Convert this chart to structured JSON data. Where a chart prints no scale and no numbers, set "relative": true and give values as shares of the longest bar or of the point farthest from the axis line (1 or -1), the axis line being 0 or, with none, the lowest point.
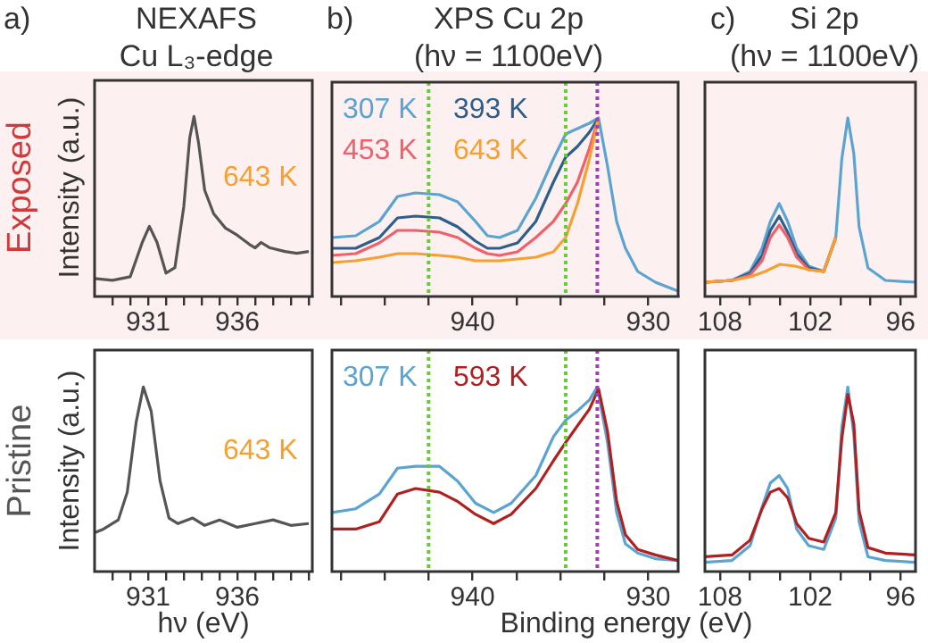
{
  "chart_data": [
    {
      "type": "line",
      "title": "NEXAFS",
      "subtitle": "Cu L₃-edge",
      "ylabel": "Intensity (a.u.)",
      "annotations": [
        "a)",
        "Exposed"
      ],
      "relative": true,
      "marker": "none",
      "legend": false,
      "xlim": [
        928,
        940.2
      ],
      "xticks": [
        {
          "value": 929,
          "label": null
        },
        {
          "value": 930,
          "label": null
        },
        931,
        {
          "value": 932,
          "label": null
        },
        {
          "value": 933,
          "label": null
        },
        {
          "value": 934,
          "label": null
        },
        {
          "value": 935,
          "label": null
        },
        936,
        {
          "value": 937,
          "label": null
        },
        {
          "value": 938,
          "label": null
        },
        {
          "value": 939,
          "label": null
        },
        {
          "value": 940,
          "label": null
        }
      ],
      "series": [
        {
          "name": "643 K",
          "color": "#555555",
          "x": [
            928,
            929,
            930,
            930.67,
            931.07,
            931.5,
            932,
            932.5,
            933,
            933.33,
            933.57,
            933.83,
            934.17,
            934.67,
            935.33,
            936,
            936.67,
            937,
            937.33,
            937.83,
            938.67,
            939.33,
            940
          ],
          "values": [
            0.1,
            0.09,
            0.11,
            0.3,
            0.39,
            0.3,
            0.13,
            0.16,
            0.5,
            0.88,
            1,
            0.85,
            0.59,
            0.46,
            0.38,
            0.34,
            0.29,
            0.27,
            0.3,
            0.27,
            0.25,
            0.24,
            0.25
          ]
        }
      ]
    },
    {
      "type": "line",
      "title": "XPS Cu 2p",
      "subtitle": "(hν = 1100eV)",
      "annotations": [
        "b)"
      ],
      "relative": true,
      "marker": "none",
      "legend": "top left",
      "xlim": [
        948,
        928.3
      ],
      "xticks": [
        {
          "value": 947.5,
          "label": null
        },
        {
          "value": 945,
          "label": null
        },
        {
          "value": 942.5,
          "label": null
        },
        940,
        {
          "value": 937.5,
          "label": null
        },
        {
          "value": 935,
          "label": null
        },
        {
          "value": 932.5,
          "label": null
        },
        930
      ],
      "ref_lines": [
        {
          "axis": "x",
          "value": 942.5,
          "color": "#66cc33",
          "line_style": "dotted"
        },
        {
          "axis": "x",
          "value": 934.7,
          "color": "#66cc33",
          "line_style": "dotted"
        },
        {
          "axis": "x",
          "value": 932.9,
          "color": "#a040b0",
          "line_style": "dotted"
        }
      ],
      "series": [
        {
          "name": "643 K",
          "color": "#f5a030",
          "x": [
            948,
            946.65,
            945.3,
            944.27,
            943.24,
            941.88,
            940.85,
            939.83,
            938.46,
            936.4,
            935.4,
            934.7,
            934.03,
            933.35,
            932.83
          ],
          "values": [
            0.19,
            0.2,
            0.22,
            0.24,
            0.24,
            0.23,
            0.22,
            0.2,
            0.2,
            0.22,
            0.25,
            0.33,
            0.52,
            0.77,
            1
          ]
        },
        {
          "name": "453 K",
          "color": "#f0606a",
          "x": [
            948,
            946.65,
            945.3,
            944.27,
            943.24,
            941.88,
            940.85,
            939.83,
            939.15,
            938.46,
            937.44,
            936.4,
            935.4,
            934.7,
            934.03,
            933.35,
            932.83
          ],
          "values": [
            0.23,
            0.24,
            0.3,
            0.37,
            0.37,
            0.36,
            0.33,
            0.27,
            0.24,
            0.23,
            0.25,
            0.33,
            0.42,
            0.52,
            0.64,
            0.83,
            1
          ]
        },
        {
          "name": "393 K",
          "color": "#2e5e8c",
          "x": [
            948,
            946.65,
            945.3,
            944.27,
            943.24,
            941.88,
            940.85,
            939.83,
            939.15,
            938.46,
            937.44,
            936.4,
            935.4,
            934.7,
            934.03,
            933.35,
            932.83
          ],
          "values": [
            0.27,
            0.27,
            0.33,
            0.44,
            0.45,
            0.44,
            0.39,
            0.31,
            0.27,
            0.27,
            0.3,
            0.42,
            0.64,
            0.78,
            0.84,
            0.92,
            1
          ]
        },
        {
          "name": "307 K",
          "color": "#5ba3d0",
          "x": [
            948,
            946.65,
            945.3,
            944.27,
            943.24,
            941.88,
            940.85,
            939.83,
            939.15,
            938.46,
            937.44,
            936.4,
            935.4,
            934.7,
            934.03,
            933.35,
            932.83,
            932.32,
            931.8,
            931.3,
            930.6,
            929.6,
            928.3
          ],
          "values": [
            0.33,
            0.34,
            0.42,
            0.56,
            0.58,
            0.57,
            0.53,
            0.42,
            0.34,
            0.33,
            0.37,
            0.55,
            0.77,
            0.91,
            0.94,
            0.97,
            1,
            0.73,
            0.42,
            0.27,
            0.14,
            0.08,
            0.03
          ]
        }
      ]
    },
    {
      "type": "line",
      "title": "Si 2p",
      "subtitle": "(hν = 1100eV)",
      "annotations": [
        "c)"
      ],
      "relative": true,
      "marker": "none",
      "legend": false,
      "xlim": [
        109,
        95
      ],
      "xticks": [
        108,
        {
          "value": 106,
          "label": null
        },
        {
          "value": 104,
          "label": null
        },
        102,
        {
          "value": 100,
          "label": null
        },
        {
          "value": 98,
          "label": null
        },
        96
      ],
      "series": [
        {
          "color": "#f5a030",
          "x": [
            109,
            107.2,
            106,
            105,
            104,
            103,
            102.1,
            101.1,
            100.3
          ],
          "values": [
            0.08,
            0.09,
            0.11,
            0.14,
            0.18,
            0.17,
            0.15,
            0.14,
            0.33
          ]
        },
        {
          "color": "#f0606a",
          "x": [
            109,
            107.2,
            106,
            105.2,
            104.65,
            104.06,
            103.5,
            102.9,
            102.1,
            101.1,
            100.3
          ],
          "values": [
            0.08,
            0.09,
            0.12,
            0.2,
            0.33,
            0.4,
            0.33,
            0.22,
            0.15,
            0.14,
            0.33
          ]
        },
        {
          "color": "#2e5e8c",
          "x": [
            109,
            107.2,
            106,
            105.2,
            104.65,
            104.06,
            103.5,
            102.9,
            102.1,
            101.1,
            100.3
          ],
          "values": [
            0.08,
            0.09,
            0.13,
            0.23,
            0.37,
            0.45,
            0.36,
            0.24,
            0.16,
            0.14,
            0.33
          ]
        },
        {
          "color": "#5ba3d0",
          "x": [
            109,
            107.2,
            106,
            105.2,
            104.65,
            104.06,
            103.5,
            102.9,
            102.1,
            101.1,
            100.3,
            99.9,
            99.5,
            99.1,
            98.75,
            98.16,
            97,
            95
          ],
          "values": [
            0.08,
            0.09,
            0.14,
            0.27,
            0.42,
            0.52,
            0.42,
            0.27,
            0.17,
            0.14,
            0.33,
            0.77,
            1,
            0.8,
            0.39,
            0.16,
            0.09,
            0.08
          ]
        }
      ]
    },
    {
      "type": "line",
      "xlabel": "hν (eV)",
      "ylabel": "Intensity (a.u.)",
      "annotations": [
        "Pristine"
      ],
      "relative": true,
      "marker": "none",
      "legend": false,
      "xlim": [
        928,
        940.2
      ],
      "xticks": [
        {
          "value": 929,
          "label": null
        },
        {
          "value": 930,
          "label": null
        },
        931,
        {
          "value": 932,
          "label": null
        },
        {
          "value": 933,
          "label": null
        },
        {
          "value": 934,
          "label": null
        },
        {
          "value": 935,
          "label": null
        },
        936,
        {
          "value": 937,
          "label": null
        },
        {
          "value": 938,
          "label": null
        },
        {
          "value": 939,
          "label": null
        },
        {
          "value": 940,
          "label": null
        }
      ],
      "series": [
        {
          "name": "643 K",
          "color": "#555555",
          "x": [
            928,
            928.5,
            929.33,
            929.83,
            930.33,
            930.73,
            931.17,
            931.67,
            932.17,
            932.67,
            933.5,
            934.17,
            935,
            936,
            937,
            938,
            939,
            940
          ],
          "values": [
            0.21,
            0.23,
            0.28,
            0.43,
            0.81,
            1,
            0.87,
            0.49,
            0.29,
            0.26,
            0.29,
            0.25,
            0.28,
            0.24,
            0.26,
            0.28,
            0.25,
            0.26
          ]
        }
      ]
    },
    {
      "type": "line",
      "xlabel": "Binding energy (eV)",
      "relative": true,
      "marker": "none",
      "legend": "top left",
      "xlim": [
        948,
        928.3
      ],
      "xticks": [
        {
          "value": 947.5,
          "label": null
        },
        {
          "value": 945,
          "label": null
        },
        {
          "value": 942.5,
          "label": null
        },
        940,
        {
          "value": 937.5,
          "label": null
        },
        {
          "value": 935,
          "label": null
        },
        {
          "value": 932.5,
          "label": null
        },
        930
      ],
      "ref_lines": [
        {
          "axis": "x",
          "value": 942.5,
          "color": "#66cc33",
          "line_style": "dotted"
        },
        {
          "axis": "x",
          "value": 934.7,
          "color": "#66cc33",
          "line_style": "dotted"
        },
        {
          "axis": "x",
          "value": 932.9,
          "color": "#a040b0",
          "line_style": "dotted"
        }
      ],
      "series": [
        {
          "name": "593 K",
          "color": "#b02020",
          "x": [
            948,
            946.65,
            945.3,
            944.27,
            943.24,
            941.88,
            940.85,
            939.83,
            938.8,
            937.8,
            936.4,
            935.4,
            934.7,
            934.03,
            933.35,
            932.83,
            932.32,
            931.8,
            931.3,
            930.6,
            929.6,
            928.3
          ],
          "values": [
            0.23,
            0.23,
            0.27,
            0.42,
            0.45,
            0.43,
            0.38,
            0.31,
            0.26,
            0.31,
            0.45,
            0.6,
            0.7,
            0.79,
            0.88,
            0.99,
            0.76,
            0.38,
            0.2,
            0.12,
            0.09,
            0.06
          ]
        },
        {
          "name": "307 K",
          "color": "#5ba3d0",
          "x": [
            948,
            946.65,
            945.3,
            944.27,
            943.24,
            941.88,
            940.85,
            939.83,
            938.8,
            937.8,
            936.4,
            935.4,
            934.7,
            934.03,
            933.35,
            932.9,
            932.32,
            931.8,
            931.3,
            930.6,
            929.6,
            928.3
          ],
          "values": [
            0.32,
            0.34,
            0.42,
            0.56,
            0.57,
            0.57,
            0.49,
            0.37,
            0.32,
            0.37,
            0.52,
            0.73,
            0.82,
            0.87,
            0.93,
            1,
            0.7,
            0.32,
            0.15,
            0.1,
            0.07,
            0.06
          ]
        }
      ]
    },
    {
      "type": "line",
      "relative": true,
      "marker": "none",
      "legend": false,
      "xlim": [
        109,
        95
      ],
      "xticks": [
        108,
        {
          "value": 106,
          "label": null
        },
        {
          "value": 104,
          "label": null
        },
        102,
        {
          "value": 100,
          "label": null
        },
        {
          "value": 98,
          "label": null
        },
        96
      ],
      "series": [
        {
          "color": "#b02020",
          "x": [
            109,
            107.2,
            106,
            105.2,
            104.65,
            104.06,
            103.5,
            102.9,
            102.1,
            101.1,
            100.3,
            99.9,
            99.5,
            99.1,
            98.75,
            98.16,
            97,
            95
          ],
          "values": [
            0.08,
            0.09,
            0.17,
            0.34,
            0.43,
            0.45,
            0.4,
            0.26,
            0.18,
            0.16,
            0.32,
            0.72,
            0.96,
            0.8,
            0.33,
            0.13,
            0.1,
            0.09
          ]
        },
        {
          "color": "#5ba3d0",
          "x": [
            109,
            107.2,
            106,
            105.2,
            104.65,
            104.06,
            103.5,
            102.9,
            102.1,
            101.1,
            100.3,
            99.9,
            99.5,
            99.1,
            98.75,
            98.16,
            97,
            95
          ],
          "values": [
            0.05,
            0.06,
            0.14,
            0.35,
            0.48,
            0.52,
            0.45,
            0.23,
            0.14,
            0.12,
            0.29,
            0.78,
            1,
            0.74,
            0.27,
            0.08,
            0.06,
            0.05
          ]
        }
      ]
    }
  ]
}
